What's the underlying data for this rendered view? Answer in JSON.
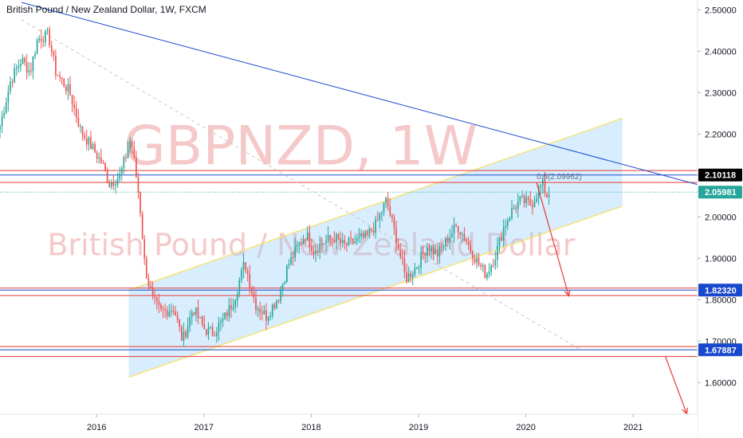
{
  "title": "British Pound / New Zealand Dollar, 1W, FXCM",
  "watermark": {
    "symbol": "GBPNZD, 1W",
    "description": "British Pound / New Zealand Dollar"
  },
  "chart_data": {
    "type": "candlestick",
    "symbol": "GBPNZD",
    "interval": "1W",
    "source": "FXCM",
    "x_range": [
      2015.1,
      2021.6
    ],
    "y_range": [
      1.5237,
      2.5237
    ],
    "y_ticks": [
      "2.50000",
      "2.40000",
      "2.30000",
      "2.20000",
      "2.10000",
      "2.00000",
      "1.90000",
      "1.80000",
      "1.70000",
      "1.60000"
    ],
    "x_ticks": [
      "2016",
      "2017",
      "2018",
      "2019",
      "2020",
      "2021"
    ],
    "price_badges": [
      {
        "label": "2.10118",
        "value": 2.10118,
        "color": "#000000"
      },
      {
        "label": "2.05981",
        "value": 2.05981,
        "color": "#26a69a"
      },
      {
        "label": "1.82320",
        "value": 1.8232,
        "color": "#1848cc"
      },
      {
        "label": "1.67887",
        "value": 1.67887,
        "color": "#1848cc"
      }
    ],
    "horizontal_lines": [
      {
        "value": 2.112,
        "color": "#e53935"
      },
      {
        "value": 2.083,
        "color": "#e53935"
      },
      {
        "value": 1.828,
        "color": "#e53935"
      },
      {
        "value": 1.81,
        "color": "#e53935"
      },
      {
        "value": 1.687,
        "color": "#e53935"
      },
      {
        "value": 1.663,
        "color": "#e53935"
      },
      {
        "value": 2.10118,
        "color": "#1848cc"
      },
      {
        "value": 1.8232,
        "color": "#1848cc"
      },
      {
        "value": 1.67887,
        "color": "#1848cc"
      },
      {
        "value": 2.05981,
        "color": "#26a69a",
        "dashed": true
      }
    ],
    "fib_label": "0.5(2.09962)",
    "channel": {
      "lower_start": [
        2016.3,
        1.613
      ],
      "lower_end": [
        2020.9,
        2.026
      ],
      "upper_start": [
        2016.3,
        1.823
      ],
      "upper_end": [
        2020.9,
        2.238
      ]
    },
    "trendline": {
      "start": [
        2015.3,
        2.518
      ],
      "end": [
        2021.6,
        2.078
      ]
    },
    "dashed_line": {
      "start": [
        2015.3,
        2.476
      ],
      "end": [
        2020.5,
        1.681
      ]
    },
    "arrows": [
      {
        "from": [
          2020.1,
          2.083
        ],
        "to": [
          2020.4,
          1.809
        ]
      },
      {
        "from": [
          2021.3,
          1.663
        ],
        "to": [
          2021.5,
          1.524
        ]
      }
    ],
    "path_points": [
      [
        2015.1,
        2.22
      ],
      [
        2015.2,
        2.33
      ],
      [
        2015.3,
        2.38
      ],
      [
        2015.38,
        2.35
      ],
      [
        2015.45,
        2.43
      ],
      [
        2015.55,
        2.44
      ],
      [
        2015.62,
        2.35
      ],
      [
        2015.75,
        2.3
      ],
      [
        2015.85,
        2.21
      ],
      [
        2015.95,
        2.17
      ],
      [
        2016.05,
        2.13
      ],
      [
        2016.12,
        2.08
      ],
      [
        2016.22,
        2.1
      ],
      [
        2016.32,
        2.19
      ],
      [
        2016.4,
        2.04
      ],
      [
        2016.45,
        1.88
      ],
      [
        2016.52,
        1.8
      ],
      [
        2016.6,
        1.77
      ],
      [
        2016.72,
        1.78
      ],
      [
        2016.8,
        1.7
      ],
      [
        2016.9,
        1.78
      ],
      [
        2017.0,
        1.73
      ],
      [
        2017.08,
        1.72
      ],
      [
        2017.18,
        1.75
      ],
      [
        2017.28,
        1.8
      ],
      [
        2017.38,
        1.89
      ],
      [
        2017.48,
        1.79
      ],
      [
        2017.58,
        1.76
      ],
      [
        2017.7,
        1.81
      ],
      [
        2017.78,
        1.88
      ],
      [
        2017.88,
        1.93
      ],
      [
        2017.95,
        1.96
      ],
      [
        2018.02,
        1.92
      ],
      [
        2018.12,
        1.94
      ],
      [
        2018.22,
        1.95
      ],
      [
        2018.3,
        1.93
      ],
      [
        2018.4,
        1.94
      ],
      [
        2018.5,
        1.95
      ],
      [
        2018.6,
        1.98
      ],
      [
        2018.7,
        2.04
      ],
      [
        2018.78,
        1.96
      ],
      [
        2018.88,
        1.85
      ],
      [
        2018.98,
        1.88
      ],
      [
        2019.08,
        1.93
      ],
      [
        2019.18,
        1.91
      ],
      [
        2019.28,
        1.95
      ],
      [
        2019.36,
        1.98
      ],
      [
        2019.45,
        1.94
      ],
      [
        2019.55,
        1.89
      ],
      [
        2019.63,
        1.86
      ],
      [
        2019.72,
        1.91
      ],
      [
        2019.8,
        1.98
      ],
      [
        2019.88,
        2.02
      ],
      [
        2019.95,
        2.04
      ],
      [
        2020.05,
        2.03
      ],
      [
        2020.15,
        2.08
      ],
      [
        2020.2,
        2.05
      ],
      [
        2020.22,
        2.06
      ]
    ]
  }
}
